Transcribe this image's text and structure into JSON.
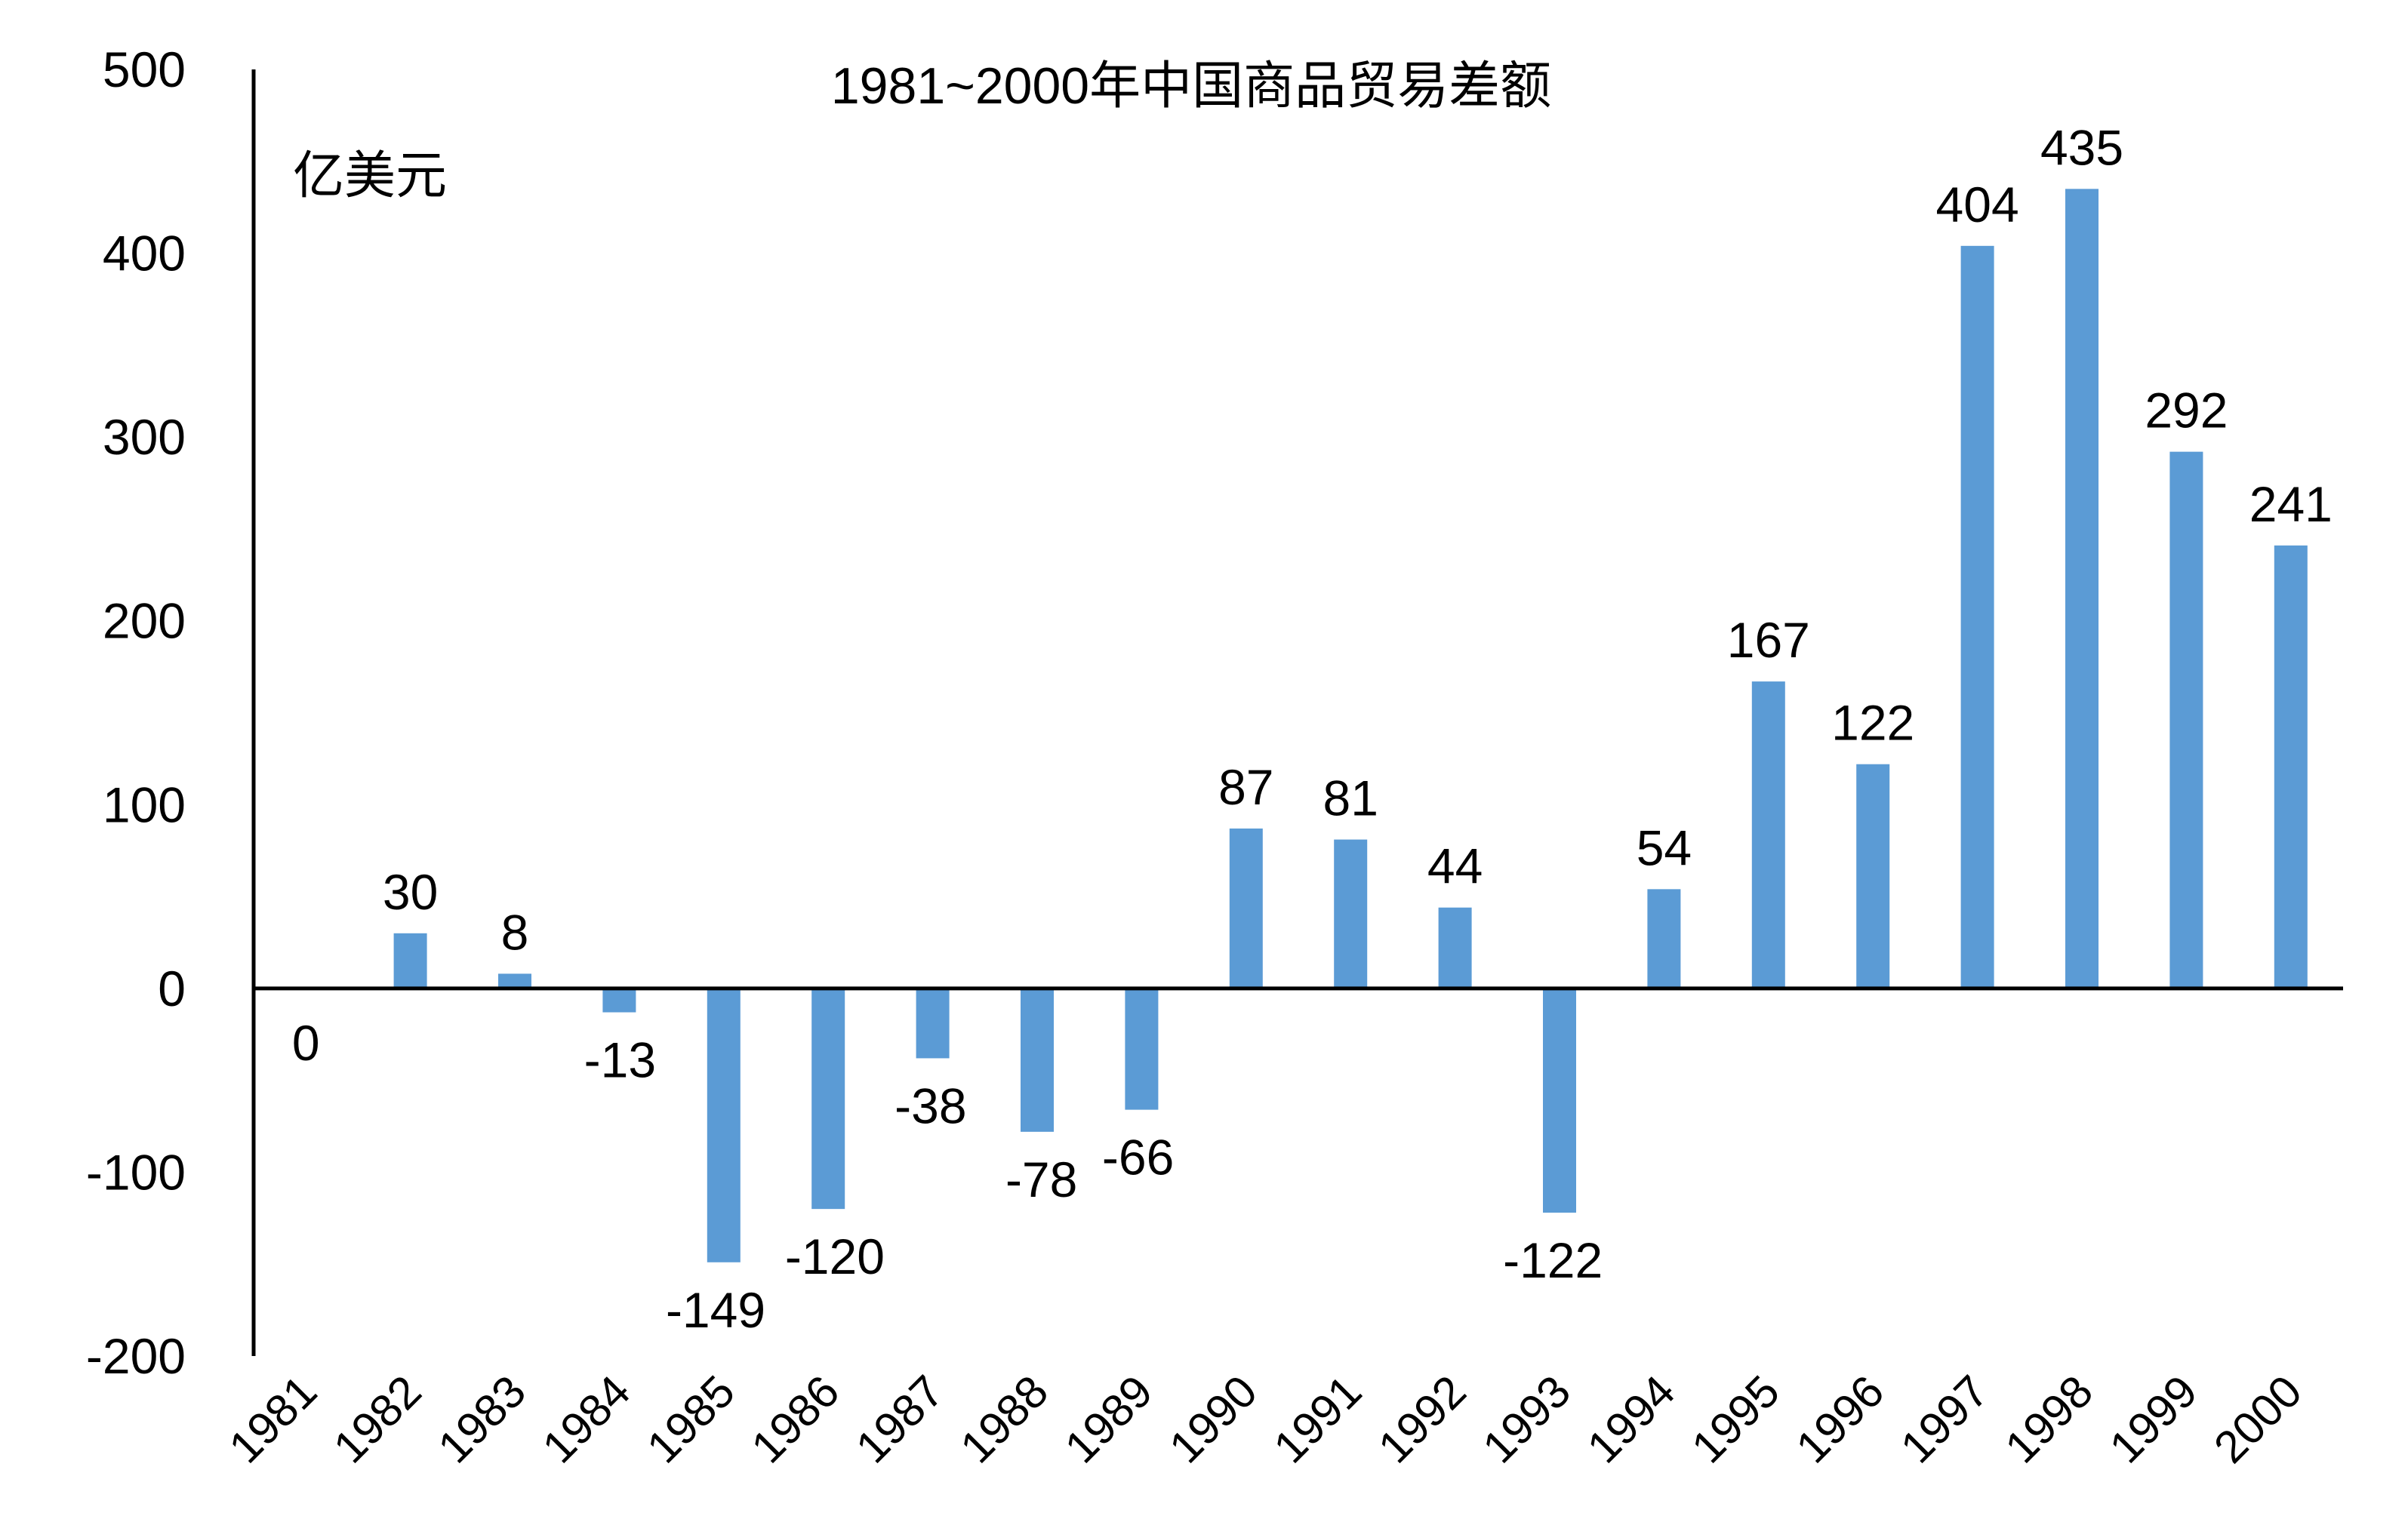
{
  "chart_data": {
    "type": "bar",
    "title": "1981~2000年中国商品贸易差额",
    "unit_label": "亿美元",
    "xlabel": "",
    "ylabel": "亿美元",
    "ylim": [
      -200,
      500
    ],
    "yticks": [
      -200,
      -100,
      0,
      100,
      200,
      300,
      400,
      500
    ],
    "tick_labels": [
      "-200",
      "-100",
      "0",
      "100",
      "200",
      "300",
      "400",
      "500"
    ],
    "grid": false,
    "legend": "none",
    "bar_color": "#5b9bd5",
    "axis_color": "#000000",
    "categories": [
      "1981",
      "1982",
      "1983",
      "1984",
      "1985",
      "1986",
      "1987",
      "1988",
      "1989",
      "1990",
      "1991",
      "1992",
      "1993",
      "1994",
      "1995",
      "1996",
      "1997",
      "1998",
      "1999",
      "2000"
    ],
    "values": [
      0,
      30,
      8,
      -13,
      -149,
      -120,
      -38,
      -78,
      -66,
      87,
      81,
      44,
      -122,
      54,
      167,
      122,
      404,
      435,
      292,
      241
    ],
    "data_labels": [
      "0",
      "30",
      "8",
      "-13",
      "-149",
      "-120",
      "-38",
      "-78",
      "-66",
      "87",
      "81",
      "44",
      "-122",
      "54",
      "167",
      "122",
      "404",
      "435",
      "292",
      "241"
    ]
  }
}
